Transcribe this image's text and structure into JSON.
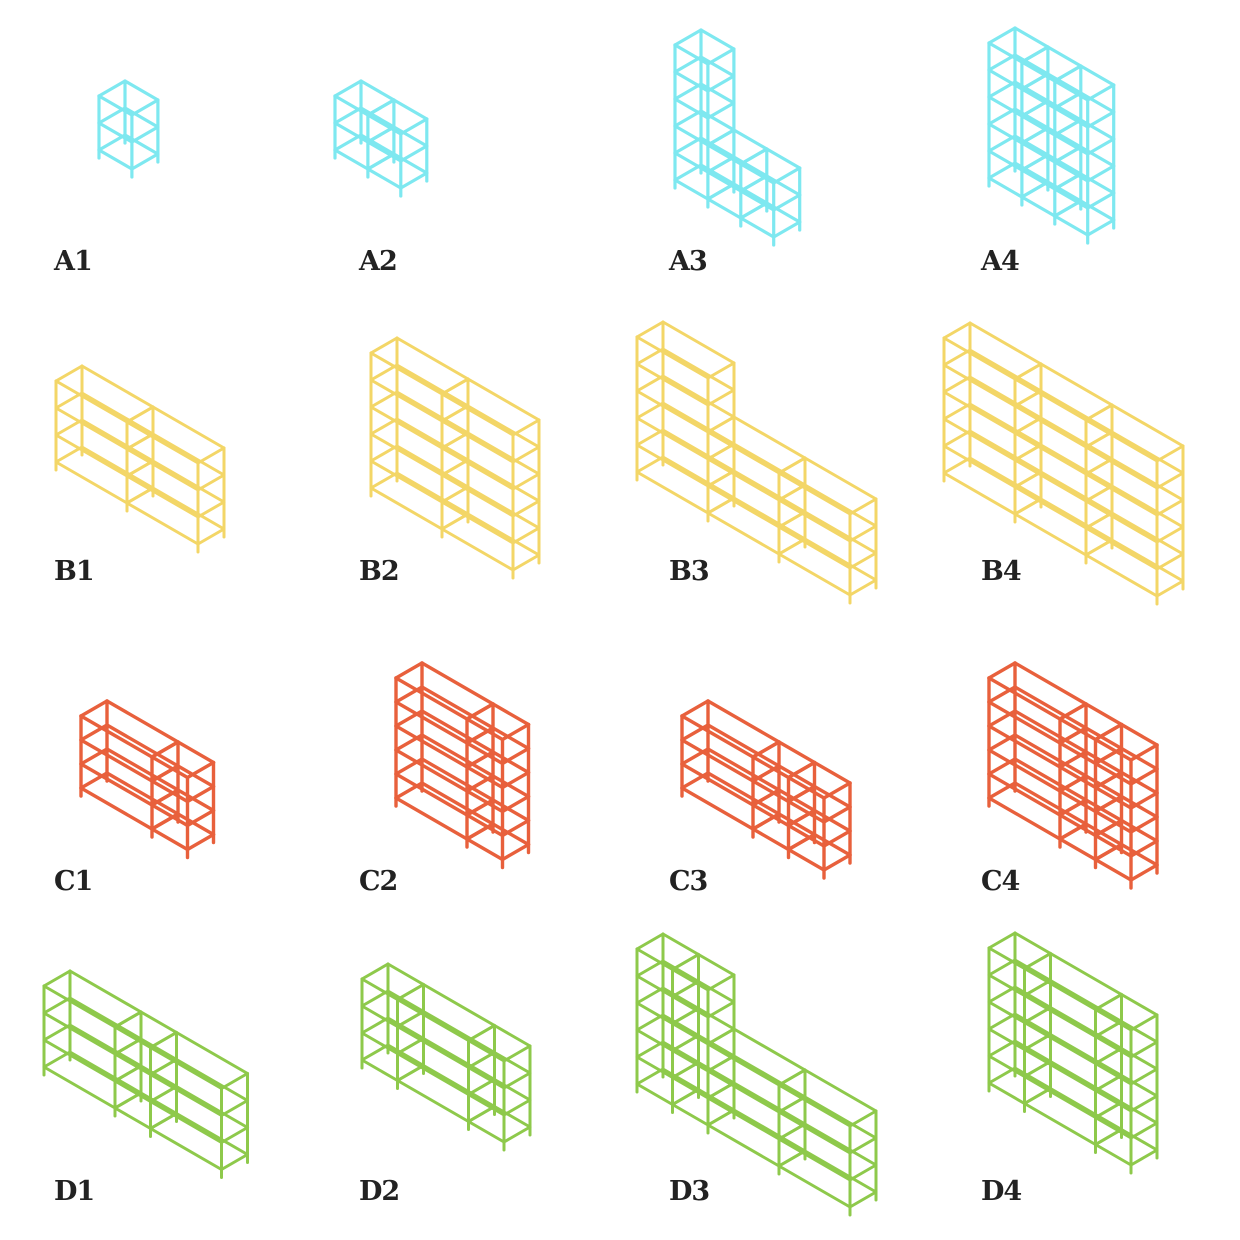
{
  "catalog": {
    "rows": [
      {
        "color": "#7ee8f0",
        "items": [
          {
            "label": "A1"
          },
          {
            "label": "A2"
          },
          {
            "label": "A3"
          },
          {
            "label": "A4"
          }
        ]
      },
      {
        "color": "#f3d667",
        "items": [
          {
            "label": "B1"
          },
          {
            "label": "B2"
          },
          {
            "label": "B3"
          },
          {
            "label": "B4"
          }
        ]
      },
      {
        "color": "#e8603c",
        "items": [
          {
            "label": "C1"
          },
          {
            "label": "C2"
          },
          {
            "label": "C3"
          },
          {
            "label": "C4"
          }
        ]
      },
      {
        "color": "#8ec94b",
        "items": [
          {
            "label": "D1"
          },
          {
            "label": "D2"
          },
          {
            "label": "D3"
          },
          {
            "label": "D4"
          }
        ]
      }
    ]
  }
}
